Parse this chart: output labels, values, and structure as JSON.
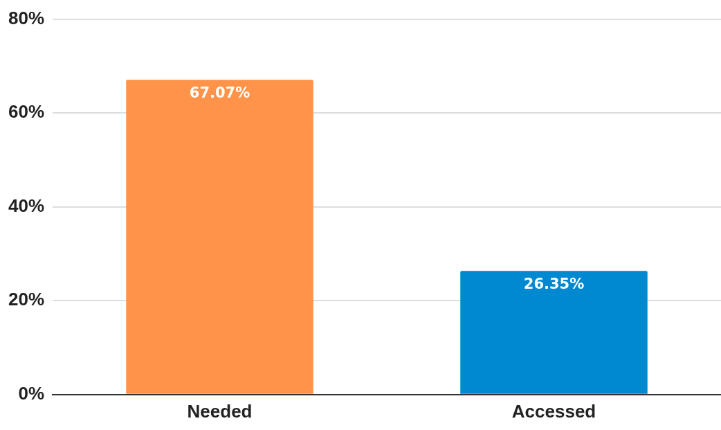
{
  "chart_data": {
    "type": "bar",
    "categories": [
      "Needed",
      "Accessed"
    ],
    "values": [
      67.07,
      26.35
    ],
    "colors": [
      "#ff9349",
      "#0089d0"
    ],
    "value_labels": [
      "67.07%",
      "26.35%"
    ],
    "ylim": [
      0,
      80
    ],
    "yticks": [
      {
        "value": 0,
        "label": "0%"
      },
      {
        "value": 20,
        "label": "20%"
      },
      {
        "value": 40,
        "label": "40%"
      },
      {
        "value": 60,
        "label": "60%"
      },
      {
        "value": 80,
        "label": "80%"
      }
    ],
    "grid": "y"
  }
}
